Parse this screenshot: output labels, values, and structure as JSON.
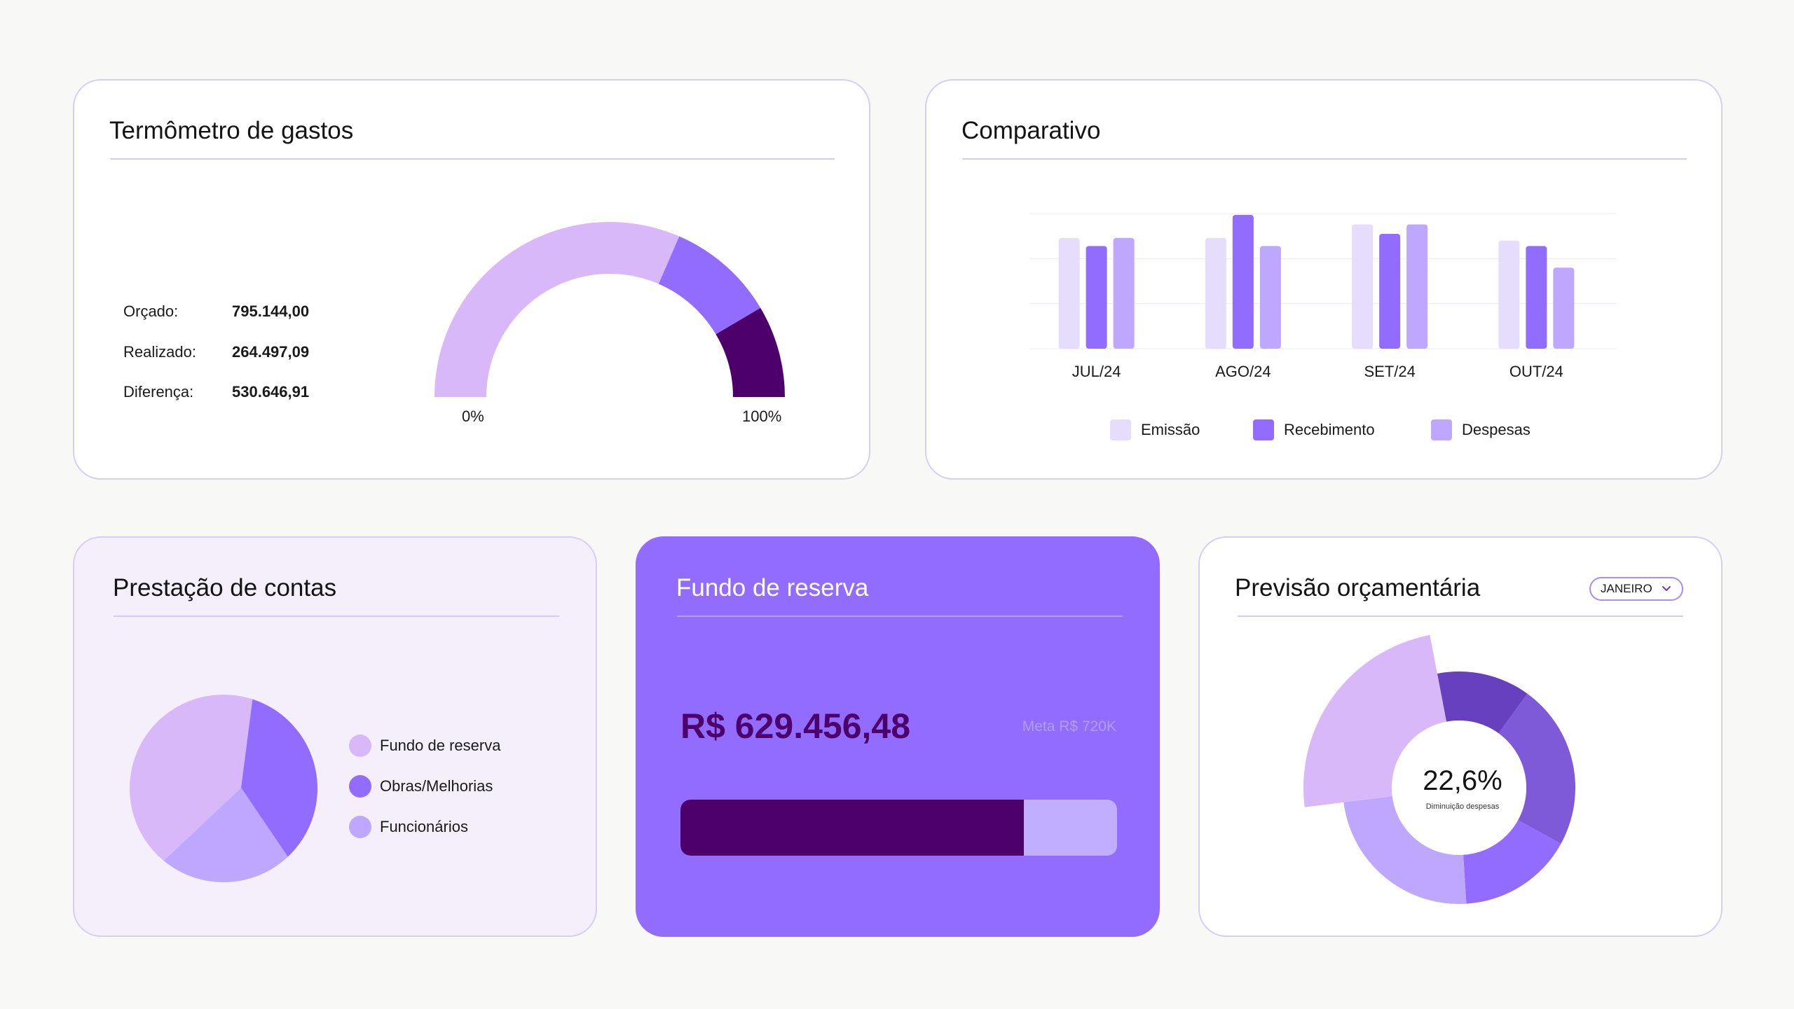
{
  "colors": {
    "lavender": "#d9b8fa",
    "violet": "#926cff",
    "plum": "#4d0069",
    "light_lilac": "#e6dcfb",
    "soft_violet": "#bea8ff",
    "deep_violet": "#6740c0",
    "mid_violet": "#7f5ad8"
  },
  "gauge_card": {
    "title": "Termômetro de gastos",
    "rows": [
      {
        "label": "Orçado:",
        "value": "795.144,00"
      },
      {
        "label": "Realizado:",
        "value": "264.497,09"
      },
      {
        "label": "Diferença:",
        "value": "530.646,91"
      }
    ],
    "min_label": "0%",
    "max_label": "100%",
    "segments": [
      0.63,
      0.2,
      0.17
    ]
  },
  "compare_card": {
    "title": "Comparativo",
    "legend": [
      "Emissão",
      "Recebimento",
      "Despesas"
    ],
    "chart_data": {
      "type": "bar",
      "categories": [
        "JUL/24",
        "AGO/24",
        "SET/24",
        "OUT/24"
      ],
      "series": [
        {
          "name": "Emissão",
          "values": [
            82,
            82,
            92,
            80
          ]
        },
        {
          "name": "Recebimento",
          "values": [
            76,
            99,
            85,
            76
          ]
        },
        {
          "name": "Despesas",
          "values": [
            82,
            76,
            92,
            60
          ]
        }
      ],
      "ylim": [
        0,
        100
      ],
      "grid": true,
      "legend_position": "bottom"
    }
  },
  "pie_card": {
    "title": "Prestação de contas",
    "legend": [
      "Fundo de reserva",
      "Obras/Melhorias",
      "Funcionários"
    ],
    "chart_data": {
      "type": "pie",
      "labels": [
        "Fundo de reserva",
        "Obras/Melhorias",
        "Funcionários"
      ],
      "values": [
        44,
        33,
        23
      ]
    }
  },
  "fund_card": {
    "title": "Fundo de reserva",
    "amount": "R$ 629.456,48",
    "meta": "Meta R$ 720K",
    "progress": 0.786
  },
  "forecast_card": {
    "title": "Previsão orçamentária",
    "month": "JANEIRO",
    "value": "22,6%",
    "caption": "Diminuição despesas",
    "segments": [
      0.13,
      0.23,
      0.16,
      0.24,
      0.24
    ]
  }
}
